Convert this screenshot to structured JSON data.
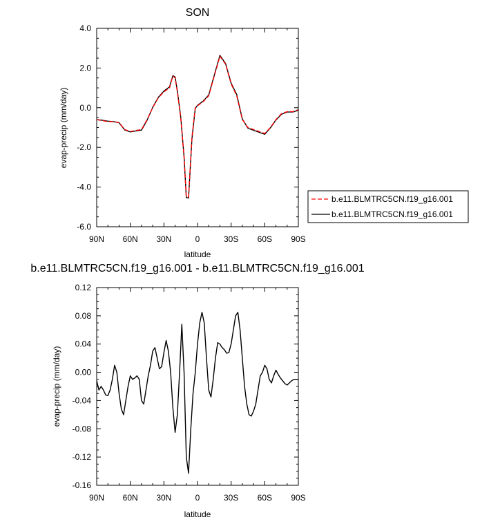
{
  "chart_data": [
    {
      "type": "line",
      "title": "SON",
      "xlabel": "latitude",
      "ylabel": "evap-precip (mm/day)",
      "xlim": [
        -90,
        90
      ],
      "ylim": [
        -6,
        4
      ],
      "x_ticks": [
        -90,
        -60,
        -30,
        0,
        30,
        60,
        90
      ],
      "x_tick_labels": [
        "90N",
        "60N",
        "30N",
        "0",
        "30S",
        "60S",
        "90S"
      ],
      "y_ticks": [
        -6,
        -4,
        -2,
        0,
        2,
        4
      ],
      "y_tick_labels": [
        "-6.0",
        "-4.0",
        "-2.0",
        "0.0",
        "2.0",
        "4.0"
      ],
      "legend_position": "right",
      "x": [
        -90,
        -85,
        -80,
        -75,
        -70,
        -65,
        -60,
        -55,
        -50,
        -45,
        -40,
        -35,
        -30,
        -25,
        -22,
        -20,
        -18,
        -15,
        -12,
        -10,
        -8,
        -5,
        -2,
        0,
        5,
        10,
        15,
        20,
        25,
        30,
        35,
        40,
        45,
        50,
        55,
        60,
        65,
        70,
        75,
        80,
        85,
        90
      ],
      "series": [
        {
          "name": "b.e11.BLMTRC5CN.f19_g16.001",
          "color": "#ff0000",
          "dash": "6,3",
          "values": [
            -0.6,
            -0.65,
            -0.7,
            -0.7,
            -0.75,
            -1.1,
            -1.2,
            -1.15,
            -1.1,
            -0.6,
            0.0,
            0.5,
            0.8,
            1.0,
            1.6,
            1.5,
            0.8,
            -0.5,
            -2.5,
            -4.5,
            -4.5,
            -1.5,
            0.0,
            0.1,
            0.3,
            0.6,
            1.6,
            2.6,
            2.2,
            1.2,
            0.6,
            -0.6,
            -1.0,
            -1.1,
            -1.2,
            -1.3,
            -1.0,
            -0.6,
            -0.3,
            -0.2,
            -0.2,
            -0.1
          ]
        },
        {
          "name": "b.e11.BLMTRC5CN.f19_g16.001",
          "color": "#000000",
          "dash": "",
          "values": [
            -0.6,
            -0.63,
            -0.68,
            -0.7,
            -0.76,
            -1.12,
            -1.22,
            -1.17,
            -1.13,
            -0.63,
            0.02,
            0.52,
            0.84,
            1.05,
            1.62,
            1.55,
            0.85,
            -0.45,
            -2.47,
            -4.53,
            -4.55,
            -1.6,
            -0.03,
            0.12,
            0.33,
            0.64,
            1.64,
            2.64,
            2.23,
            1.24,
            0.66,
            -0.57,
            -1.03,
            -1.14,
            -1.24,
            -1.34,
            -1.02,
            -0.62,
            -0.33,
            -0.22,
            -0.22,
            -0.13
          ]
        }
      ]
    },
    {
      "type": "line",
      "title": "b.e11.BLMTRC5CN.f19_g16.001 - b.e11.BLMTRC5CN.f19_g16.001",
      "xlabel": "latitude",
      "ylabel": "evap-precip (mm/day)",
      "xlim": [
        -90,
        90
      ],
      "ylim": [
        -0.16,
        0.12
      ],
      "x_ticks": [
        -90,
        -60,
        -30,
        0,
        30,
        60,
        90
      ],
      "x_tick_labels": [
        "90N",
        "60N",
        "30N",
        "0",
        "30S",
        "60S",
        "90S"
      ],
      "y_ticks": [
        -0.16,
        -0.12,
        -0.08,
        -0.04,
        0.0,
        0.04,
        0.08,
        0.12
      ],
      "y_tick_labels": [
        "-0.16",
        "-0.12",
        "-0.08",
        "-0.04",
        "0.00",
        "0.04",
        "0.08",
        "0.12"
      ],
      "x": [
        -90,
        -88,
        -86,
        -84,
        -82,
        -80,
        -78,
        -76,
        -74,
        -72,
        -70,
        -68,
        -66,
        -64,
        -62,
        -60,
        -58,
        -56,
        -54,
        -52,
        -50,
        -48,
        -46,
        -44,
        -42,
        -40,
        -38,
        -36,
        -34,
        -32,
        -30,
        -28,
        -26,
        -24,
        -22,
        -20,
        -18,
        -16,
        -14,
        -12,
        -10,
        -8,
        -6,
        -4,
        -2,
        0,
        2,
        4,
        6,
        8,
        10,
        12,
        14,
        16,
        18,
        20,
        22,
        24,
        26,
        28,
        30,
        32,
        34,
        36,
        38,
        40,
        42,
        44,
        46,
        48,
        50,
        52,
        54,
        56,
        58,
        60,
        62,
        64,
        66,
        68,
        70,
        72,
        74,
        76,
        78,
        80,
        82,
        84,
        86,
        88,
        90
      ],
      "series": [
        {
          "color": "#000000",
          "values": [
            -0.012,
            -0.025,
            -0.02,
            -0.025,
            -0.032,
            -0.033,
            -0.025,
            -0.01,
            0.01,
            0.0,
            -0.03,
            -0.052,
            -0.06,
            -0.04,
            -0.02,
            -0.005,
            -0.01,
            -0.008,
            -0.005,
            -0.01,
            -0.04,
            -0.045,
            -0.025,
            -0.005,
            0.01,
            0.03,
            0.035,
            0.02,
            0.005,
            0.008,
            0.028,
            0.045,
            0.03,
            0.0,
            -0.05,
            -0.085,
            -0.06,
            0.0,
            0.068,
            0.0,
            -0.12,
            -0.143,
            -0.08,
            -0.03,
            0.0,
            0.04,
            0.07,
            0.085,
            0.07,
            0.02,
            -0.025,
            -0.035,
            -0.01,
            0.02,
            0.042,
            0.04,
            0.035,
            0.032,
            0.027,
            0.028,
            0.04,
            0.06,
            0.08,
            0.085,
            0.06,
            0.02,
            -0.02,
            -0.045,
            -0.06,
            -0.062,
            -0.055,
            -0.045,
            -0.025,
            -0.005,
            0.0,
            0.01,
            0.005,
            -0.01,
            -0.015,
            -0.005,
            0.003,
            -0.003,
            -0.008,
            -0.012,
            -0.016,
            -0.018,
            -0.015,
            -0.012,
            -0.01,
            -0.01,
            -0.01
          ]
        }
      ]
    }
  ]
}
